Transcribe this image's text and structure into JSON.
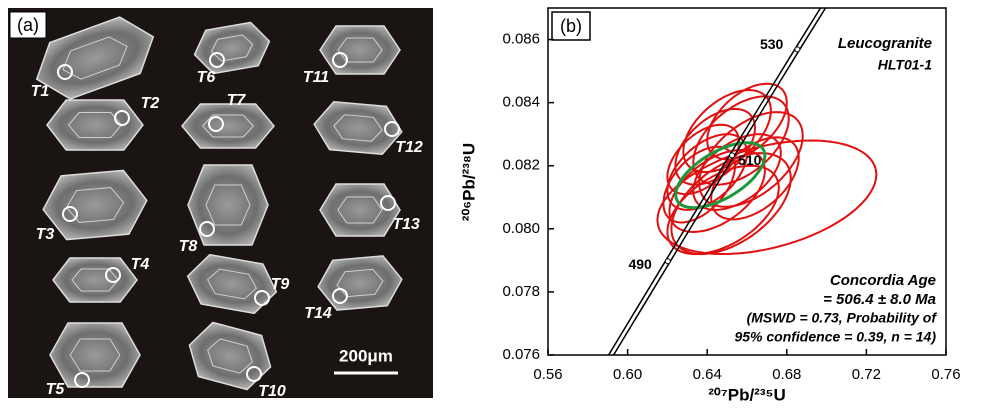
{
  "panel_a": {
    "label": "(a)",
    "grains": [
      "T1",
      "T2",
      "T3",
      "T4",
      "T5",
      "T6",
      "T7",
      "T8",
      "T9",
      "T10",
      "T11",
      "T12",
      "T13",
      "T14"
    ],
    "scale_bar": "200μm"
  },
  "chart_data": {
    "type": "concordia",
    "panel_label": "(b)",
    "title": "Leucogranite",
    "subtitle": "HLT01-1",
    "annotations": [
      "Concordia Age",
      "= 506.4 ± 8.0 Ma",
      "(MSWD = 0.73, Probability of",
      "95% confidence = 0.39, n = 14)"
    ],
    "x_label": "²⁰⁷Pb/²³⁵U",
    "y_label": "²⁰⁶Pb/²³⁸U",
    "xlim": [
      0.56,
      0.76
    ],
    "ylim": [
      0.076,
      0.087
    ],
    "xticks": [
      0.56,
      {
        "value": 0.6,
        "label": "0.60"
      },
      0.64,
      0.68,
      0.72,
      0.76
    ],
    "yticks": [
      0.076,
      0.078,
      {
        "value": 0.08,
        "label": "0.080"
      },
      0.082,
      0.084,
      0.086
    ],
    "concordia": {
      "color": "#000000",
      "x": [
        0.5917,
        0.6202,
        0.6525,
        0.6853,
        0.6982
      ],
      "y": [
        0.076,
        0.07897,
        0.08233,
        0.08569,
        0.087
      ]
    },
    "age_markers": [
      {
        "label": "490",
        "x": 0.6202,
        "y": 0.07897
      },
      {
        "label": "510",
        "x": 0.6525,
        "y": 0.08233
      },
      {
        "label": "530",
        "x": 0.6853,
        "y": 0.08569
      }
    ],
    "series": [
      {
        "name": "analyses",
        "color": "#e01010",
        "x": [
          0.65,
          0.657,
          0.662,
          0.64,
          0.645,
          0.67,
          0.648,
          0.655,
          0.638,
          0.66,
          0.644,
          0.652,
          0.636,
          0.664
        ],
        "values": [
          0.0831,
          0.0828,
          0.0822,
          0.0818,
          0.0812,
          0.081,
          0.0806,
          0.0818,
          0.0822,
          0.0834,
          0.0826,
          0.0808,
          0.0814,
          0.0816
        ],
        "x_err": [
          0.022,
          0.024,
          0.026,
          0.02,
          0.024,
          0.055,
          0.028,
          0.022,
          0.018,
          0.02,
          0.02,
          0.03,
          0.018,
          0.022
        ],
        "y_err": [
          0.0013,
          0.0014,
          0.0015,
          0.0012,
          0.0013,
          0.0018,
          0.0014,
          0.0012,
          0.0011,
          0.0012,
          0.0012,
          0.0016,
          0.0012,
          0.0013
        ],
        "rho": [
          0.5,
          0.5,
          0.5,
          0.5,
          0.5,
          0.4,
          0.5,
          0.5,
          0.5,
          0.5,
          0.5,
          0.5,
          0.5,
          0.5
        ]
      },
      {
        "name": "concordia age",
        "color": "#1a9a3a",
        "x": [
          0.6466
        ],
        "values": [
          0.0817
        ],
        "x_err": [
          0.0224
        ],
        "y_err": [
          0.00103
        ],
        "rho": [
          0.6
        ]
      }
    ]
  }
}
